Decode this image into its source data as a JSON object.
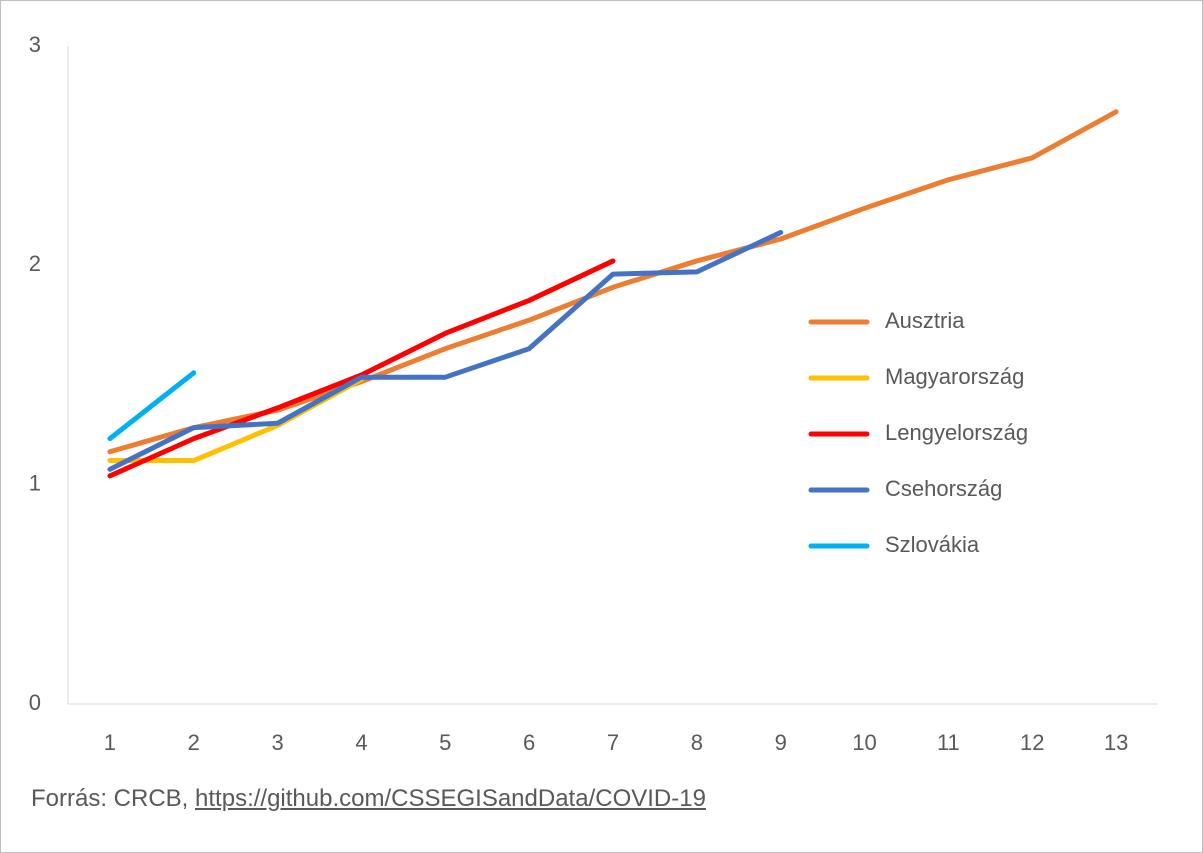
{
  "chart_data": {
    "type": "line",
    "x": [
      1,
      2,
      3,
      4,
      5,
      6,
      7,
      8,
      9,
      10,
      11,
      12,
      13
    ],
    "xlim": [
      0.5,
      13.5
    ],
    "xticks": [
      1,
      2,
      3,
      4,
      5,
      6,
      7,
      8,
      9,
      10,
      11,
      12,
      13
    ],
    "ylim": [
      0,
      3
    ],
    "yticks": [
      0,
      1,
      2,
      3
    ],
    "legend": "right",
    "series": [
      {
        "name": "Ausztria",
        "color": "#ED7D31",
        "values": [
          1.15,
          1.26,
          1.34,
          1.47,
          1.62,
          1.75,
          1.9,
          2.02,
          2.12,
          2.26,
          2.39,
          2.49,
          2.7
        ]
      },
      {
        "name": "Magyarország",
        "color": "#FFC000",
        "values": [
          1.11,
          1.11,
          1.27,
          1.48,
          null,
          null,
          null,
          null,
          null,
          null,
          null,
          null,
          null
        ]
      },
      {
        "name": "Lengyelország",
        "color": "#FF0000",
        "values": [
          1.04,
          1.21,
          1.35,
          1.5,
          1.69,
          1.84,
          2.02,
          null,
          null,
          null,
          null,
          null,
          null
        ]
      },
      {
        "name": "Csehország",
        "color": "#4472C4",
        "values": [
          1.07,
          1.26,
          1.28,
          1.49,
          1.49,
          1.62,
          1.96,
          1.97,
          2.15,
          null,
          null,
          null,
          null
        ]
      },
      {
        "name": "Szlovákia",
        "color": "#00B0F0",
        "values": [
          1.21,
          1.51,
          null,
          null,
          null,
          null,
          null,
          null,
          null,
          null,
          null,
          null,
          null
        ]
      }
    ]
  },
  "footer": {
    "text": "Forrás: CRCB,",
    "link": "https://github.com/CSSEGISandData/COVID-19"
  }
}
